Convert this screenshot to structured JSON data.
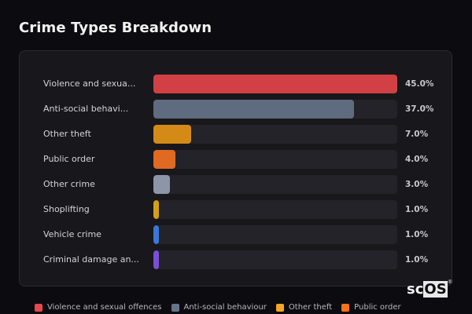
{
  "title": "Crime Types Breakdown",
  "logo": {
    "prefix": "sc",
    "highlight": "OS",
    "mark": "®"
  },
  "chart_data": {
    "type": "bar",
    "orientation": "horizontal",
    "title": "Crime Types Breakdown",
    "categories": [
      "Violence and sexual offences",
      "Anti-social behaviour",
      "Other theft",
      "Public order",
      "Other crime",
      "Shoplifting",
      "Vehicle crime",
      "Criminal damage and arson"
    ],
    "display_labels": [
      "Violence and sexua...",
      "Anti-social behavi...",
      "Other theft",
      "Public order",
      "Other crime",
      "Shoplifting",
      "Vehicle crime",
      "Criminal damage an..."
    ],
    "values": [
      45.0,
      37.0,
      7.0,
      4.0,
      3.0,
      1.0,
      1.0,
      1.0
    ],
    "value_labels": [
      "45.0%",
      "37.0%",
      "7.0%",
      "4.0%",
      "3.0%",
      "1.0%",
      "1.0%",
      "1.0%"
    ],
    "colors": [
      "#d04044",
      "#5f6b7e",
      "#d38a16",
      "#e06a22",
      "#8c96a8",
      "#d4a017",
      "#3a78d8",
      "#7a4fd6"
    ],
    "xlabel": "",
    "ylabel": "",
    "unit": "%",
    "legend": {
      "position": "bottom",
      "entries": [
        {
          "label": "Violence and sexual offences",
          "color": "#e5484d"
        },
        {
          "label": "Anti-social behaviour",
          "color": "#64748b"
        },
        {
          "label": "Other theft",
          "color": "#f5a524"
        },
        {
          "label": "Public order",
          "color": "#f97316"
        }
      ]
    },
    "grid": false
  }
}
